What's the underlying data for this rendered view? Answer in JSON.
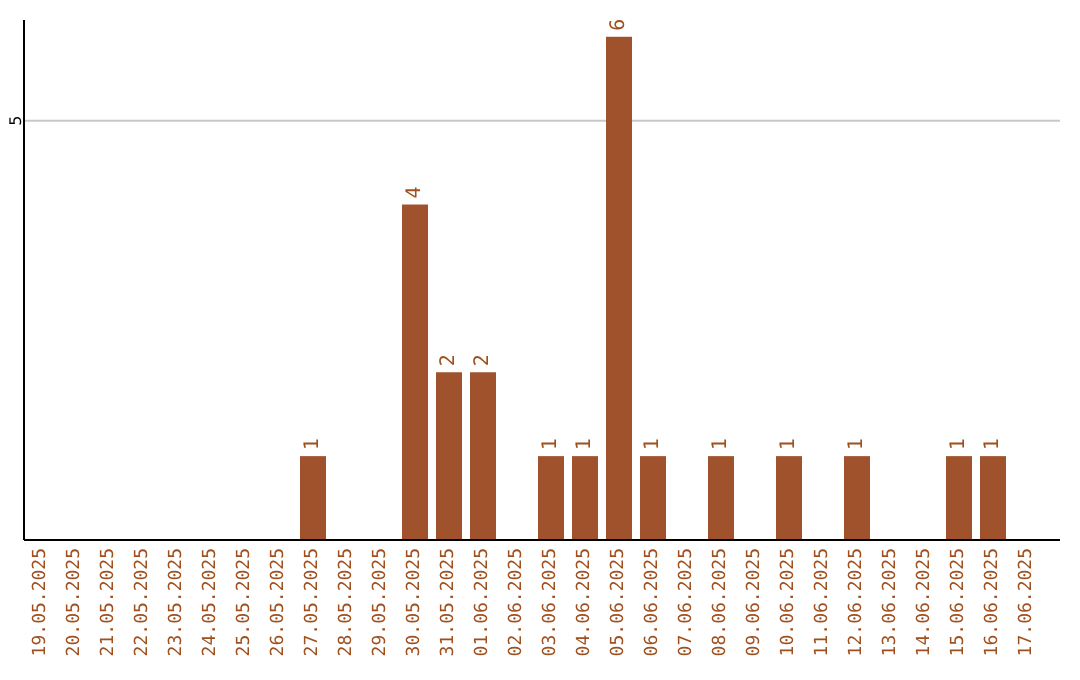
{
  "chart_data": {
    "type": "bar",
    "categories": [
      "19.05.2025",
      "20.05.2025",
      "21.05.2025",
      "22.05.2025",
      "23.05.2025",
      "24.05.2025",
      "25.05.2025",
      "26.05.2025",
      "27.05.2025",
      "28.05.2025",
      "29.05.2025",
      "30.05.2025",
      "31.05.2025",
      "01.06.2025",
      "02.06.2025",
      "03.06.2025",
      "04.06.2025",
      "05.06.2025",
      "06.06.2025",
      "07.06.2025",
      "08.06.2025",
      "09.06.2025",
      "10.06.2025",
      "11.06.2025",
      "12.06.2025",
      "13.06.2025",
      "14.06.2025",
      "15.06.2025",
      "16.06.2025",
      "17.06.2025"
    ],
    "values": [
      0,
      0,
      0,
      0,
      0,
      0,
      0,
      0,
      1,
      0,
      0,
      4,
      2,
      2,
      0,
      1,
      1,
      6,
      1,
      0,
      1,
      0,
      1,
      0,
      1,
      0,
      0,
      1,
      1,
      0
    ],
    "value_labels": [
      null,
      null,
      null,
      null,
      null,
      null,
      null,
      null,
      "1",
      null,
      null,
      "4",
      "2",
      "2",
      null,
      "1",
      "1",
      "6",
      "1",
      null,
      "1",
      null,
      "1",
      null,
      "1",
      null,
      null,
      "1",
      "1",
      null
    ],
    "color": "#a0522d",
    "ylim": [
      0,
      6.2
    ],
    "yticks": [
      5
    ],
    "grid": "y"
  }
}
